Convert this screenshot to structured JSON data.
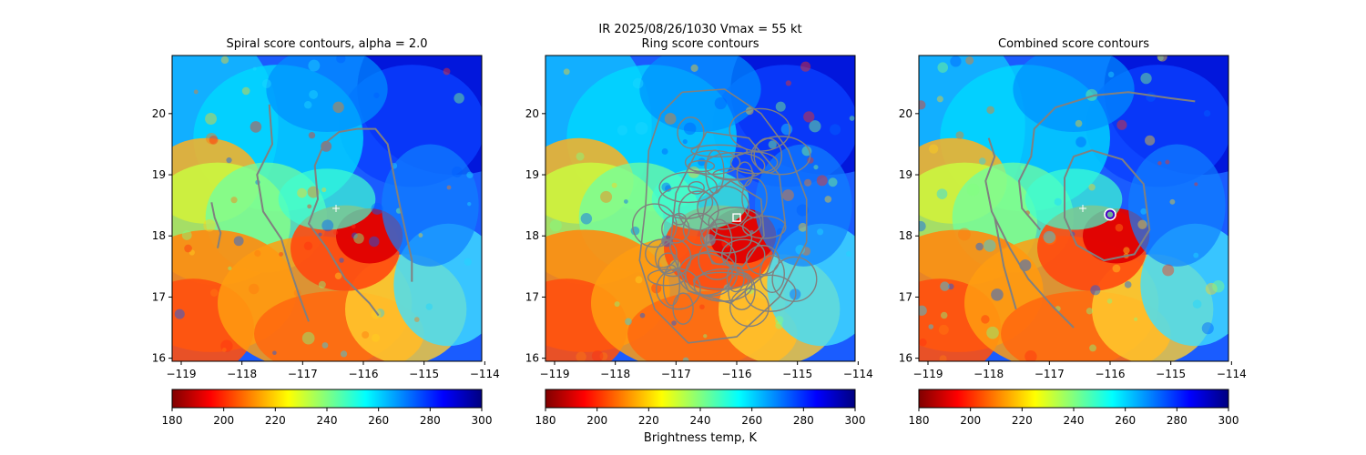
{
  "figure": {
    "suptitle_line1": "IR  2025/08/26/1030    Vmax = 55 kt",
    "colorbar_label": "Brightness temp, K",
    "colormap": "jet_r",
    "palette": [
      "#800000",
      "#ff0000",
      "#ff8000",
      "#ffff00",
      "#80ff80",
      "#00ffff",
      "#0080ff",
      "#0000ff",
      "#000080"
    ]
  },
  "chart_data": [
    {
      "type": "heatmap",
      "title": "Spiral score contours, alpha =  2.0",
      "x_ticks": [
        "−119",
        "−118",
        "−117",
        "−116",
        "−115",
        "−114"
      ],
      "y_ticks": [
        "16",
        "17",
        "18",
        "19",
        "20"
      ],
      "xlim": [
        -119.15,
        -114.05
      ],
      "ylim": [
        15.95,
        20.95
      ],
      "colorbar": {
        "range": [
          180,
          300
        ],
        "ticks": [
          "180",
          "200",
          "220",
          "240",
          "260",
          "280",
          "300"
        ]
      },
      "marker": {
        "symbol": "+",
        "lon": -116.45,
        "lat": 18.45
      },
      "contours": [
        [
          [
            -118.5,
            18.55
          ],
          [
            -118.45,
            18.3
          ],
          [
            -118.35,
            18.05
          ],
          [
            -118.4,
            17.8
          ]
        ],
        [
          [
            -117.55,
            20.15
          ],
          [
            -117.5,
            19.5
          ],
          [
            -117.75,
            19.0
          ],
          [
            -117.65,
            18.4
          ],
          [
            -117.35,
            17.95
          ],
          [
            -117.2,
            17.45
          ],
          [
            -117.05,
            17.0
          ],
          [
            -116.9,
            16.6
          ]
        ],
        [
          [
            -115.2,
            17.25
          ],
          [
            -115.2,
            17.6
          ],
          [
            -115.4,
            18.5
          ],
          [
            -115.6,
            19.5
          ],
          [
            -115.8,
            19.75
          ],
          [
            -116.1,
            19.75
          ],
          [
            -116.4,
            19.7
          ],
          [
            -116.65,
            19.5
          ],
          [
            -116.8,
            19.15
          ],
          [
            -116.75,
            18.6
          ],
          [
            -116.9,
            18.2
          ],
          [
            -116.6,
            17.8
          ],
          [
            -116.3,
            17.3
          ],
          [
            -115.9,
            16.9
          ],
          [
            -115.75,
            16.7
          ]
        ]
      ]
    },
    {
      "type": "heatmap",
      "title": "Ring score contours",
      "x_ticks": [
        "−119",
        "−118",
        "−117",
        "−116",
        "−115",
        "−114"
      ],
      "y_ticks": [
        "16",
        "17",
        "18",
        "19",
        "20"
      ],
      "xlim": [
        -119.15,
        -114.05
      ],
      "ylim": [
        15.95,
        20.95
      ],
      "colorbar": {
        "range": [
          180,
          300
        ],
        "ticks": [
          "180",
          "200",
          "220",
          "240",
          "260",
          "280",
          "300"
        ]
      },
      "marker": {
        "symbol": "square",
        "lon": -116.0,
        "lat": 18.3
      },
      "contours": [
        [
          [
            -116.9,
            20.35
          ],
          [
            -116.2,
            20.4
          ],
          [
            -115.6,
            20.0
          ],
          [
            -115.15,
            19.4
          ],
          [
            -114.85,
            18.6
          ],
          [
            -114.85,
            17.9
          ],
          [
            -115.3,
            17.0
          ],
          [
            -116.0,
            16.35
          ],
          [
            -116.8,
            16.25
          ],
          [
            -117.35,
            16.8
          ],
          [
            -117.6,
            17.6
          ],
          [
            -117.5,
            18.5
          ],
          [
            -117.45,
            19.4
          ],
          [
            -117.25,
            20.0
          ],
          [
            -116.9,
            20.35
          ]
        ],
        [
          [
            -116.5,
            19.7
          ],
          [
            -115.8,
            19.6
          ],
          [
            -115.3,
            19.0
          ],
          [
            -115.2,
            18.2
          ],
          [
            -115.5,
            17.4
          ],
          [
            -116.1,
            16.9
          ],
          [
            -116.8,
            17.1
          ],
          [
            -117.1,
            17.8
          ],
          [
            -117.0,
            18.7
          ],
          [
            -116.5,
            19.7
          ]
        ],
        [
          [
            -116.1,
            18.9
          ],
          [
            -115.6,
            18.6
          ],
          [
            -115.55,
            18.0
          ],
          [
            -115.9,
            17.5
          ],
          [
            -116.4,
            17.55
          ],
          [
            -116.6,
            18.1
          ],
          [
            -116.5,
            18.6
          ],
          [
            -116.1,
            18.9
          ]
        ]
      ]
    },
    {
      "type": "heatmap",
      "title": "Combined score contours",
      "x_ticks": [
        "−119",
        "−118",
        "−117",
        "−116",
        "−115",
        "−114"
      ],
      "y_ticks": [
        "16",
        "17",
        "18",
        "19",
        "20"
      ],
      "xlim": [
        -119.15,
        -114.05
      ],
      "ylim": [
        15.95,
        20.95
      ],
      "colorbar": {
        "range": [
          180,
          300
        ],
        "ticks": [
          "180",
          "200",
          "220",
          "240",
          "260",
          "280",
          "300"
        ]
      },
      "marker": {
        "symbol": "+",
        "lon": -116.45,
        "lat": 18.45
      },
      "circle_marker": {
        "lon": -116.0,
        "lat": 18.35
      },
      "contours": [
        [
          [
            -117.9,
            18.3
          ],
          [
            -117.75,
            17.5
          ],
          [
            -117.55,
            16.8
          ]
        ],
        [
          [
            -118.0,
            19.6
          ],
          [
            -117.9,
            19.3
          ],
          [
            -118.05,
            18.9
          ],
          [
            -117.95,
            18.4
          ],
          [
            -117.65,
            17.8
          ],
          [
            -117.35,
            17.3
          ],
          [
            -116.95,
            16.85
          ],
          [
            -116.6,
            16.5
          ]
        ],
        [
          [
            -114.6,
            20.2
          ],
          [
            -115.0,
            20.25
          ],
          [
            -115.7,
            20.35
          ],
          [
            -116.25,
            20.3
          ],
          [
            -116.9,
            20.1
          ],
          [
            -117.25,
            19.75
          ],
          [
            -117.3,
            19.3
          ],
          [
            -117.5,
            18.9
          ],
          [
            -117.45,
            18.45
          ],
          [
            -117.15,
            18.1
          ]
        ],
        [
          [
            -116.3,
            19.4
          ],
          [
            -115.8,
            19.25
          ],
          [
            -115.45,
            18.85
          ],
          [
            -115.35,
            18.1
          ],
          [
            -115.6,
            17.7
          ],
          [
            -116.1,
            17.6
          ],
          [
            -116.55,
            17.85
          ],
          [
            -116.75,
            18.3
          ],
          [
            -116.75,
            18.95
          ],
          [
            -116.6,
            19.3
          ],
          [
            -116.3,
            19.4
          ]
        ]
      ]
    }
  ]
}
